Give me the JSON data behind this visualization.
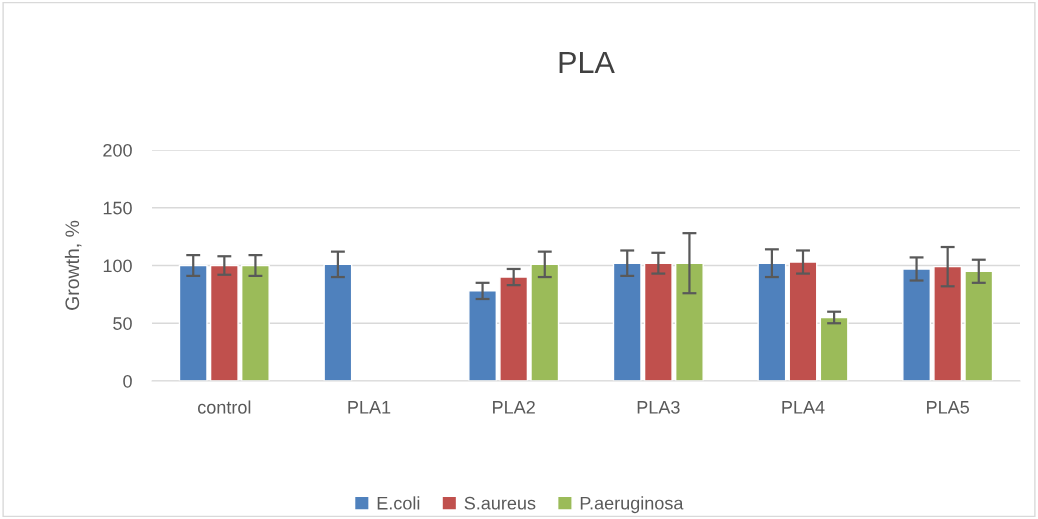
{
  "chart_data": {
    "type": "bar",
    "title": "PLA",
    "ylabel": "Growth, %",
    "categories": [
      "control",
      "PLA1",
      "PLA2",
      "PLA3",
      "PLA4",
      "PLA5"
    ],
    "series": [
      {
        "name": "E.coli",
        "color": "#4f81bd",
        "values": [
          100,
          101,
          78,
          102,
          102,
          97
        ],
        "errors": [
          9,
          11,
          7,
          11,
          12,
          10
        ]
      },
      {
        "name": "S.aureus",
        "color": "#c0504d",
        "values": [
          100,
          null,
          90,
          102,
          103,
          99
        ],
        "errors": [
          8,
          null,
          7,
          9,
          10,
          17
        ]
      },
      {
        "name": "P.aeruginosa",
        "color": "#9bbb59",
        "values": [
          100,
          null,
          101,
          102,
          55,
          95
        ],
        "errors": [
          9,
          null,
          11,
          26,
          5,
          10
        ]
      }
    ],
    "ylim": [
      0,
      200
    ],
    "yticks": [
      0,
      50,
      100,
      150,
      200
    ],
    "grid": "y",
    "legend": "bottom"
  }
}
